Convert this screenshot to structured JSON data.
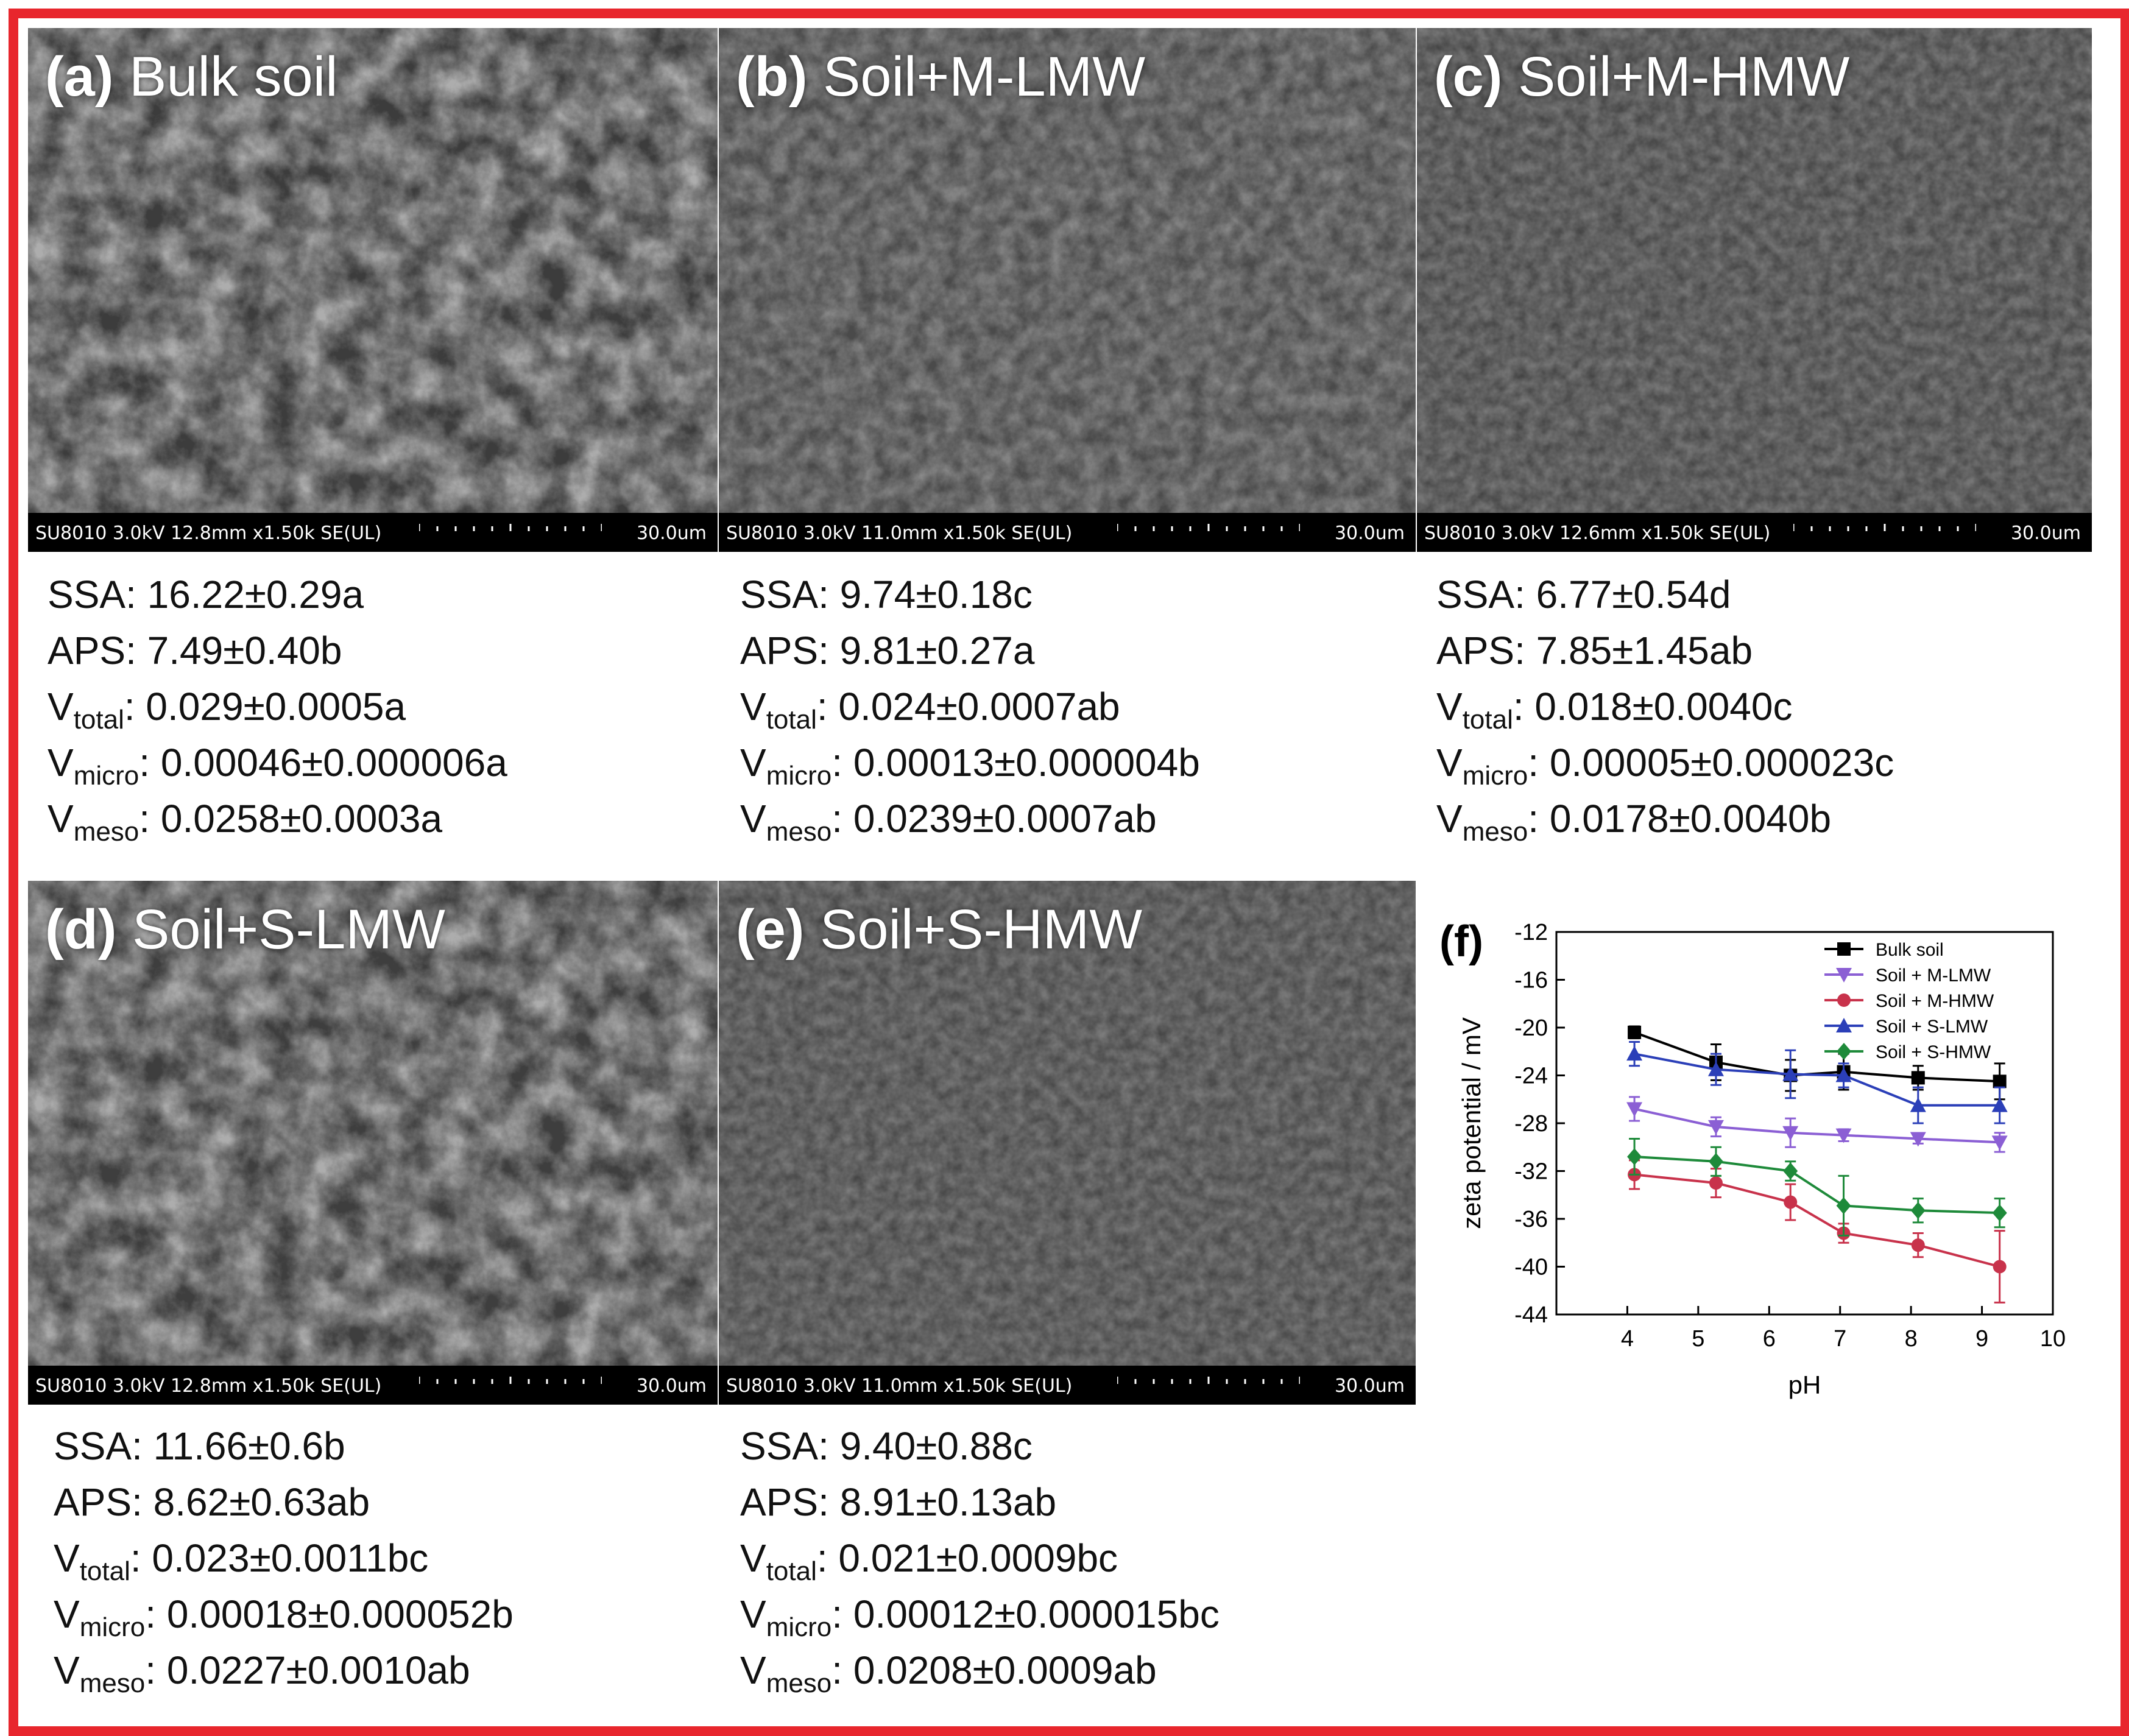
{
  "panels": [
    {
      "letter": "(a)",
      "name": "Bulk soil",
      "info": "SU8010 3.0kV 12.8mm x1.50k SE(UL)",
      "scale": "30.0um",
      "stats": {
        "ssa": "16.22±0.29a",
        "aps": "7.49±0.40b",
        "vtotal": "0.029±0.0005a",
        "vmicro": "0.00046±0.000006a",
        "vmeso": "0.0258±0.0003a"
      }
    },
    {
      "letter": "(b)",
      "name": "Soil+M-LMW",
      "info": "SU8010 3.0kV 11.0mm x1.50k SE(UL)",
      "scale": "30.0um",
      "stats": {
        "ssa": "9.74±0.18c",
        "aps": "9.81±0.27a",
        "vtotal": "0.024±0.0007ab",
        "vmicro": "0.00013±0.000004b",
        "vmeso": "0.0239±0.0007ab"
      }
    },
    {
      "letter": "(c)",
      "name": "Soil+M-HMW",
      "info": "SU8010 3.0kV 12.6mm x1.50k SE(UL)",
      "scale": "30.0um",
      "stats": {
        "ssa": "6.77±0.54d",
        "aps": "7.85±1.45ab",
        "vtotal": "0.018±0.0040c",
        "vmicro": "0.00005±0.000023c",
        "vmeso": "0.0178±0.0040b"
      }
    },
    {
      "letter": "(d)",
      "name": "Soil+S-LMW",
      "info": "SU8010 3.0kV 12.8mm x1.50k SE(UL)",
      "scale": "30.0um",
      "stats": {
        "ssa": "11.66±0.6b",
        "aps": "8.62±0.63ab",
        "vtotal": "0.023±0.0011bc",
        "vmicro": "0.00018±0.000052b",
        "vmeso": "0.0227±0.0010ab"
      }
    },
    {
      "letter": "(e)",
      "name": "Soil+S-HMW",
      "info": "SU8010 3.0kV 11.0mm x1.50k SE(UL)",
      "scale": "30.0um",
      "stats": {
        "ssa": "9.40±0.88c",
        "aps": "8.91±0.13ab",
        "vtotal": "0.021±0.0009bc",
        "vmicro": "0.00012±0.000015bc",
        "vmeso": "0.0208±0.0009ab"
      }
    }
  ],
  "labels": {
    "ssa": "SSA:",
    "aps": "APS:",
    "v": "V",
    "total": "total",
    "micro": "micro",
    "meso": "meso"
  },
  "chart_data": {
    "type": "line",
    "panel_label": "(f)",
    "xlabel": "pH",
    "ylabel": "zeta potential / mV",
    "xlim": [
      3,
      10
    ],
    "ylim": [
      -44,
      -12
    ],
    "xticks": [
      4,
      5,
      6,
      7,
      8,
      9,
      10
    ],
    "yticks": [
      -12,
      -16,
      -20,
      -24,
      -28,
      -32,
      -36,
      -40,
      -44
    ],
    "legend_position": "top-right",
    "grid": false,
    "series": [
      {
        "name": "Bulk soil",
        "color": "#000000",
        "marker": "square",
        "x": [
          4.1,
          5.25,
          6.3,
          7.05,
          8.1,
          9.25
        ],
        "y": [
          -20.4,
          -22.9,
          -24.0,
          -23.7,
          -24.2,
          -24.5
        ],
        "err": [
          0.5,
          1.5,
          1.3,
          1.5,
          1.0,
          1.5
        ]
      },
      {
        "name": "Soil + M-LMW",
        "color": "#8b5fd4",
        "marker": "triangle-down",
        "x": [
          4.1,
          5.25,
          6.3,
          7.05,
          8.1,
          9.25
        ],
        "y": [
          -26.8,
          -28.3,
          -28.8,
          -29.0,
          -29.3,
          -29.6
        ],
        "err": [
          1.0,
          0.8,
          1.2,
          0.5,
          0.4,
          0.8
        ]
      },
      {
        "name": "Soil + M-HMW",
        "color": "#c8324b",
        "marker": "circle",
        "x": [
          4.1,
          5.25,
          6.3,
          7.05,
          8.1,
          9.25
        ],
        "y": [
          -32.3,
          -33.0,
          -34.6,
          -37.2,
          -38.2,
          -40.0
        ],
        "err": [
          1.2,
          1.2,
          1.5,
          0.8,
          1.0,
          3.0
        ]
      },
      {
        "name": "Soil + S-LMW",
        "color": "#2b3fb8",
        "marker": "triangle-up",
        "x": [
          4.1,
          5.25,
          6.3,
          7.05,
          8.1,
          9.25
        ],
        "y": [
          -22.2,
          -23.5,
          -23.9,
          -24.0,
          -26.5,
          -26.5
        ],
        "err": [
          1.0,
          1.3,
          2.0,
          1.0,
          1.5,
          1.5
        ]
      },
      {
        "name": "Soil + S-HMW",
        "color": "#1e8a3a",
        "marker": "diamond",
        "x": [
          4.1,
          5.25,
          6.3,
          7.05,
          8.1,
          9.25
        ],
        "y": [
          -30.8,
          -31.2,
          -32.0,
          -34.9,
          -35.3,
          -35.5
        ],
        "err": [
          1.5,
          1.2,
          0.8,
          2.5,
          1.0,
          1.2
        ]
      }
    ]
  }
}
